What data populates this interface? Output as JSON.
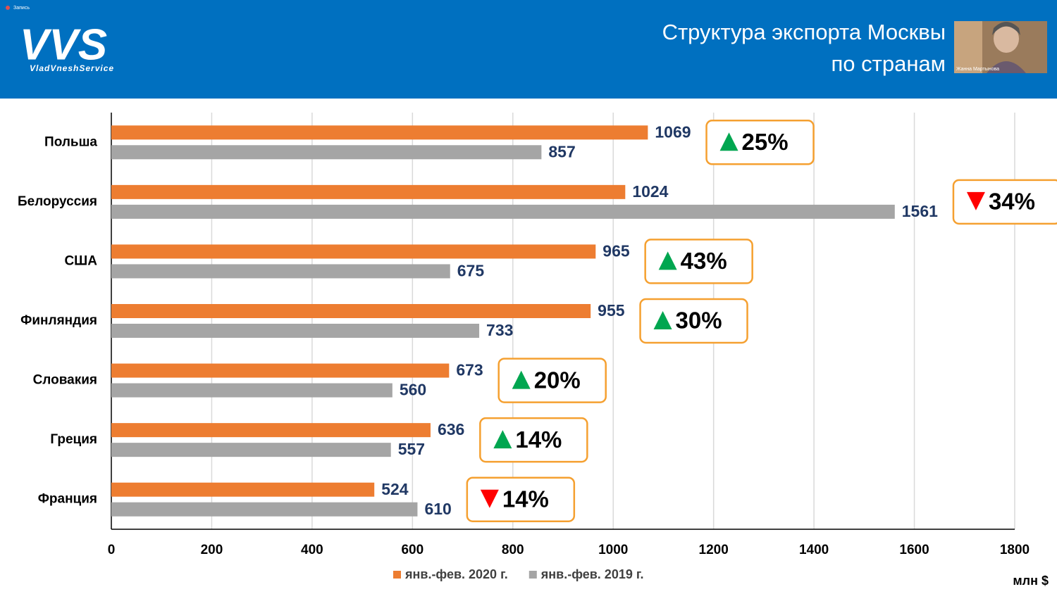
{
  "header": {
    "recording": "Запись",
    "logo": "VVS",
    "logo_subtitle": "VladVneshService",
    "participant": "Жанна Мартынова"
  },
  "chart_data": {
    "type": "hbar",
    "title": [
      "Структура экспорта Москвы",
      "по странам"
    ],
    "categories": [
      "Польша",
      "Белоруссия",
      "США",
      "Финляндия",
      "Словакия",
      "Греция",
      "Франция"
    ],
    "series": [
      {
        "name": "янв.-фев. 2020 г.",
        "color": "#ED7D31",
        "values": [
          1069,
          1024,
          965,
          955,
          673,
          636,
          524
        ]
      },
      {
        "name": "янв.-фев. 2019 г.",
        "color": "#A5A5A5",
        "values": [
          857,
          1561,
          675,
          733,
          560,
          557,
          610
        ]
      }
    ],
    "annotations": [
      {
        "text": "25%",
        "direction": "up"
      },
      {
        "text": "34%",
        "direction": "down"
      },
      {
        "text": "43%",
        "direction": "up"
      },
      {
        "text": "30%",
        "direction": "up"
      },
      {
        "text": "20%",
        "direction": "up"
      },
      {
        "text": "14%",
        "direction": "up"
      },
      {
        "text": "14%",
        "direction": "down"
      }
    ],
    "unit_label": "млн $",
    "xlim": [
      0,
      1800
    ],
    "xticks": [
      0,
      200,
      400,
      600,
      800,
      1000,
      1200,
      1400,
      1600,
      1800
    ],
    "grid": true
  }
}
